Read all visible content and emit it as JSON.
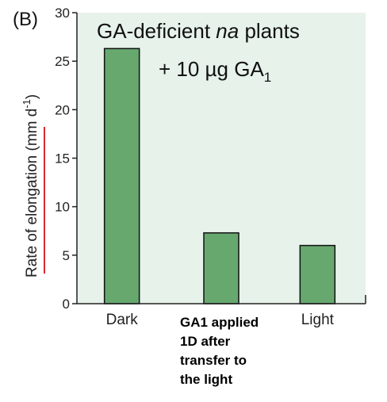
{
  "chart_data": {
    "type": "bar",
    "panel_label": "(B)",
    "title": "GA-deficient na plants",
    "title_parts": {
      "pre": "GA-deficient ",
      "italic": "na",
      "post": " plants"
    },
    "subtitle": "+ 10 µg GA1",
    "subtitle_parts": {
      "pre": "+ 10 µg GA",
      "sub": "1"
    },
    "ylabel": "Rate of elongation (mm d-1)",
    "ylabel_parts": {
      "pre": "Rate of elongation (mm d",
      "sup": "-1",
      "post": ")"
    },
    "ylim": [
      0,
      30
    ],
    "yticks": [
      "0",
      "5",
      "10",
      "15",
      "20",
      "25",
      "30"
    ],
    "categories": [
      "Dark",
      "GA1 applied 1D after transfer to the light",
      "Light"
    ],
    "category_lines": [
      [
        "Dark"
      ],
      [
        "GA1 applied",
        "1D after",
        "transfer to",
        "the light"
      ],
      [
        "Light"
      ]
    ],
    "values": [
      26.3,
      7.3,
      6.0
    ],
    "colors": {
      "bar": "#67a86f",
      "bar_edge": "#111111",
      "plot_bg": "#e6f2ea",
      "underline": "#d92b2b"
    },
    "grid": false,
    "legend": "none"
  }
}
